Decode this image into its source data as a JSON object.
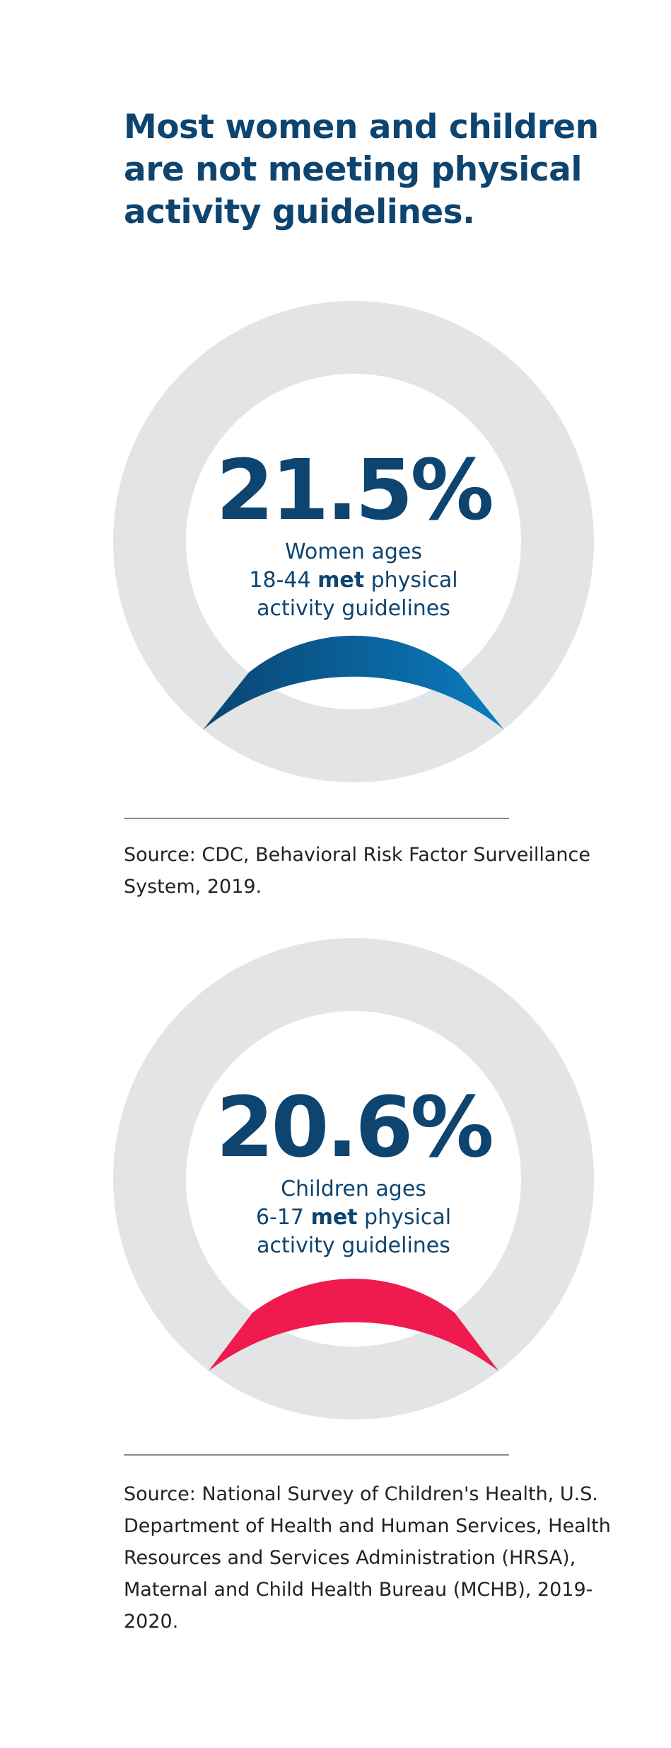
{
  "headline": "Most women and children are not meeting physical activity guidelines.",
  "chart_data": [
    {
      "type": "pie",
      "title": "",
      "value_label": "21.5%",
      "value": 21.5,
      "unit": "%",
      "caption_line1": "Women ages",
      "caption_line2_pre": "18-44 ",
      "caption_line2_bold": "met",
      "caption_line2_post": " physical",
      "caption_line3": "activity guidelines",
      "colors": {
        "track": "#e3e4e6",
        "fill_start": "#0a4470",
        "fill_end": "#0a7cc1"
      },
      "source": "Source: CDC, Behavioral Risk Factor Surveillance System, 2019."
    },
    {
      "type": "pie",
      "title": "",
      "value_label": "20.6%",
      "value": 20.6,
      "unit": "%",
      "caption_line1": "Children ages",
      "caption_line2_pre": "6-17 ",
      "caption_line2_bold": "met",
      "caption_line2_post": " physical",
      "caption_line3": "activity guidelines",
      "colors": {
        "track": "#e3e4e6",
        "fill_start": "#ef1a4d",
        "fill_end": "#ef1a4d"
      },
      "source": "Source: National Survey of Children's Health, U.S. Department of Health and Human Services, Health Resources and Services Administration (HRSA), Maternal and Child Health Bureau (MCHB), 2019-2020."
    }
  ]
}
